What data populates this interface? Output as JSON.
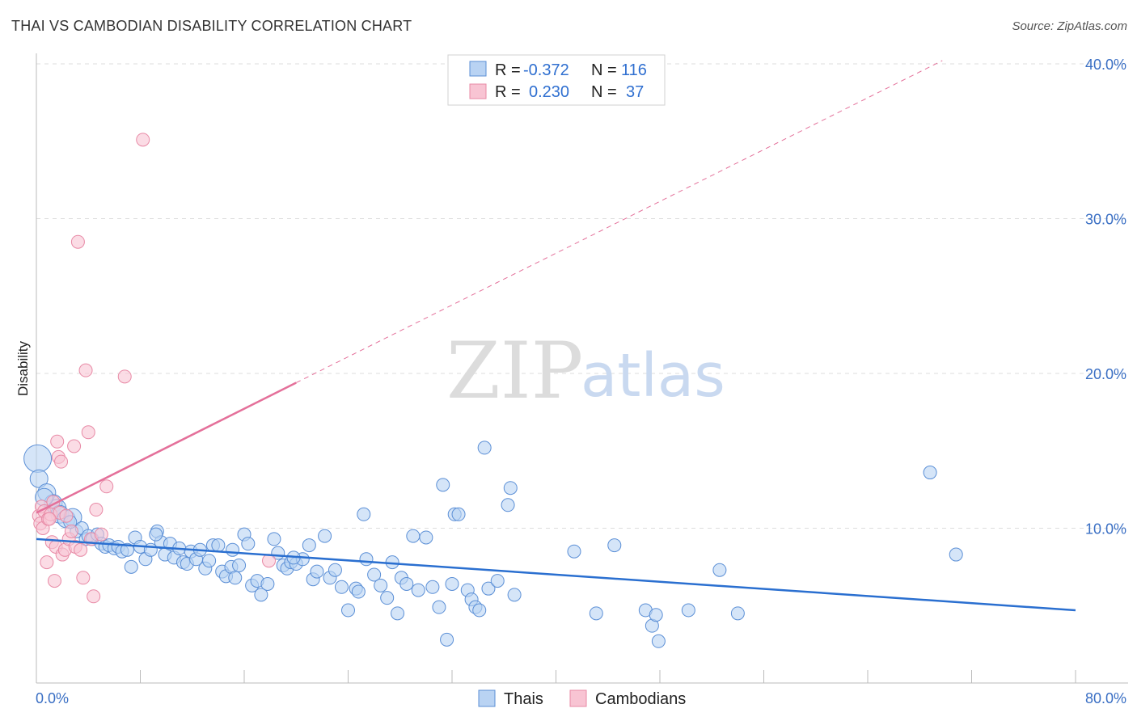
{
  "title": "THAI VS CAMBODIAN DISABILITY CORRELATION CHART",
  "source": "Source: ZipAtlas.com",
  "watermark": {
    "zip": "ZIP",
    "atlas": "atlas"
  },
  "legend_top": [
    {
      "r_label": "R =",
      "r_value": "-0.372",
      "n_label": "N =",
      "n_value": "116"
    },
    {
      "r_label": "R =",
      "r_value": "0.230",
      "n_label": "N =",
      "n_value": "37"
    }
  ],
  "legend_bottom": [
    "Thais",
    "Cambodians"
  ],
  "colors": {
    "thais_fill": "#b9d3f3",
    "thais_stroke": "#5b8fd6",
    "thais_line": "#2a6fd0",
    "camb_fill": "#f8c4d3",
    "camb_stroke": "#e88aa6",
    "camb_line": "#e4709a",
    "grid": "#dddddd",
    "tick_label": "#3a6fc4"
  },
  "chart_data": {
    "type": "scatter",
    "xlabel": "",
    "ylabel": "Disability",
    "xlim": [
      0,
      80
    ],
    "ylim": [
      0,
      40
    ],
    "x_tick_labels": [
      "0.0%",
      "80.0%"
    ],
    "y_ticks": [
      10,
      20,
      30,
      40
    ],
    "y_tick_labels": [
      "10.0%",
      "20.0%",
      "30.0%",
      "40.0%"
    ],
    "grid": true,
    "legend_position": "top-center",
    "series": [
      {
        "name": "Thais",
        "r": -0.372,
        "n": 116,
        "trend": {
          "x": [
            0,
            80
          ],
          "y": [
            9.3,
            4.7
          ]
        },
        "points": [
          [
            0.1,
            14.5
          ],
          [
            0.2,
            13.2
          ],
          [
            0.8,
            12.3
          ],
          [
            1.3,
            11.6
          ],
          [
            1.6,
            11.3
          ],
          [
            1.8,
            10.9
          ],
          [
            2.3,
            10.6
          ],
          [
            2.8,
            10.7
          ],
          [
            3.1,
            9.8
          ],
          [
            3.5,
            10.0
          ],
          [
            3.8,
            9.3
          ],
          [
            4.0,
            9.5
          ],
          [
            4.3,
            9.3
          ],
          [
            4.7,
            9.6
          ],
          [
            5.0,
            9.0
          ],
          [
            5.3,
            8.8
          ],
          [
            5.6,
            8.9
          ],
          [
            6.0,
            8.7
          ],
          [
            6.3,
            8.8
          ],
          [
            6.6,
            8.5
          ],
          [
            7.0,
            8.6
          ],
          [
            7.3,
            7.5
          ],
          [
            7.6,
            9.4
          ],
          [
            8.0,
            8.8
          ],
          [
            8.4,
            8.0
          ],
          [
            8.8,
            8.6
          ],
          [
            9.3,
            9.8
          ],
          [
            9.6,
            9.1
          ],
          [
            9.9,
            8.3
          ],
          [
            10.3,
            9.0
          ],
          [
            10.6,
            8.1
          ],
          [
            11.0,
            8.7
          ],
          [
            11.3,
            7.8
          ],
          [
            11.6,
            7.7
          ],
          [
            11.9,
            8.5
          ],
          [
            12.3,
            8.0
          ],
          [
            12.6,
            8.6
          ],
          [
            13.0,
            7.4
          ],
          [
            13.3,
            7.9
          ],
          [
            13.6,
            8.9
          ],
          [
            14.0,
            8.9
          ],
          [
            14.3,
            7.2
          ],
          [
            14.6,
            6.9
          ],
          [
            15.0,
            7.5
          ],
          [
            15.3,
            6.8
          ],
          [
            15.6,
            7.6
          ],
          [
            16.0,
            9.6
          ],
          [
            16.3,
            9.0
          ],
          [
            16.6,
            6.3
          ],
          [
            17.0,
            6.6
          ],
          [
            17.3,
            5.7
          ],
          [
            17.8,
            6.4
          ],
          [
            18.3,
            9.3
          ],
          [
            18.6,
            8.4
          ],
          [
            19.0,
            7.6
          ],
          [
            19.3,
            7.4
          ],
          [
            19.6,
            7.8
          ],
          [
            20.0,
            7.7
          ],
          [
            20.5,
            8.0
          ],
          [
            21.0,
            8.9
          ],
          [
            21.3,
            6.7
          ],
          [
            21.6,
            7.2
          ],
          [
            22.2,
            9.5
          ],
          [
            22.6,
            6.8
          ],
          [
            23.0,
            7.3
          ],
          [
            23.5,
            6.2
          ],
          [
            24.0,
            4.7
          ],
          [
            24.6,
            6.1
          ],
          [
            25.2,
            10.9
          ],
          [
            25.4,
            8.0
          ],
          [
            26.0,
            7.0
          ],
          [
            26.5,
            6.3
          ],
          [
            27.0,
            5.5
          ],
          [
            27.4,
            7.8
          ],
          [
            27.8,
            4.5
          ],
          [
            28.1,
            6.8
          ],
          [
            28.5,
            6.4
          ],
          [
            29.0,
            9.5
          ],
          [
            29.4,
            6.0
          ],
          [
            30.0,
            9.4
          ],
          [
            30.5,
            6.2
          ],
          [
            31.0,
            4.9
          ],
          [
            31.3,
            12.8
          ],
          [
            31.6,
            2.8
          ],
          [
            32.0,
            6.4
          ],
          [
            32.2,
            10.9
          ],
          [
            32.5,
            10.9
          ],
          [
            33.2,
            6.0
          ],
          [
            33.5,
            5.4
          ],
          [
            33.8,
            4.9
          ],
          [
            34.1,
            4.7
          ],
          [
            34.5,
            15.2
          ],
          [
            34.8,
            6.1
          ],
          [
            35.5,
            6.6
          ],
          [
            36.3,
            11.5
          ],
          [
            36.5,
            12.6
          ],
          [
            36.8,
            5.7
          ],
          [
            41.4,
            8.5
          ],
          [
            43.1,
            4.5
          ],
          [
            44.5,
            8.9
          ],
          [
            46.9,
            4.7
          ],
          [
            47.4,
            3.7
          ],
          [
            47.7,
            4.4
          ],
          [
            47.9,
            2.7
          ],
          [
            50.2,
            4.7
          ],
          [
            52.6,
            7.3
          ],
          [
            54.0,
            4.5
          ],
          [
            68.8,
            13.6
          ],
          [
            70.8,
            8.3
          ],
          [
            19.8,
            8.1
          ],
          [
            15.1,
            8.6
          ],
          [
            9.2,
            9.6
          ],
          [
            2.6,
            10.4
          ],
          [
            0.6,
            12.0
          ],
          [
            24.8,
            5.9
          ]
        ]
      },
      {
        "name": "Cambodians",
        "r": 0.23,
        "n": 37,
        "trend": {
          "x": [
            0,
            20
          ],
          "y": [
            11.0,
            19.4
          ]
        },
        "trend_extension": {
          "x": [
            20,
            80
          ],
          "y": [
            19.4,
            44.5
          ]
        },
        "points": [
          [
            0.2,
            10.8
          ],
          [
            0.3,
            10.3
          ],
          [
            0.4,
            11.4
          ],
          [
            0.5,
            10.0
          ],
          [
            0.6,
            11.1
          ],
          [
            0.8,
            7.8
          ],
          [
            0.9,
            10.6
          ],
          [
            1.1,
            10.9
          ],
          [
            1.2,
            9.1
          ],
          [
            1.3,
            11.7
          ],
          [
            1.4,
            6.6
          ],
          [
            1.5,
            8.8
          ],
          [
            1.6,
            15.6
          ],
          [
            1.7,
            14.6
          ],
          [
            1.8,
            11.0
          ],
          [
            1.9,
            14.3
          ],
          [
            2.0,
            8.3
          ],
          [
            2.2,
            8.6
          ],
          [
            2.3,
            10.8
          ],
          [
            2.5,
            9.3
          ],
          [
            2.7,
            9.8
          ],
          [
            2.9,
            15.3
          ],
          [
            3.0,
            8.8
          ],
          [
            3.2,
            28.5
          ],
          [
            3.4,
            8.6
          ],
          [
            3.6,
            6.8
          ],
          [
            3.8,
            20.2
          ],
          [
            4.0,
            16.2
          ],
          [
            4.2,
            9.3
          ],
          [
            4.4,
            5.6
          ],
          [
            4.6,
            11.2
          ],
          [
            5.0,
            9.6
          ],
          [
            5.4,
            12.7
          ],
          [
            6.8,
            19.8
          ],
          [
            8.2,
            35.1
          ],
          [
            17.9,
            7.9
          ],
          [
            1.0,
            10.6
          ]
        ]
      }
    ]
  }
}
